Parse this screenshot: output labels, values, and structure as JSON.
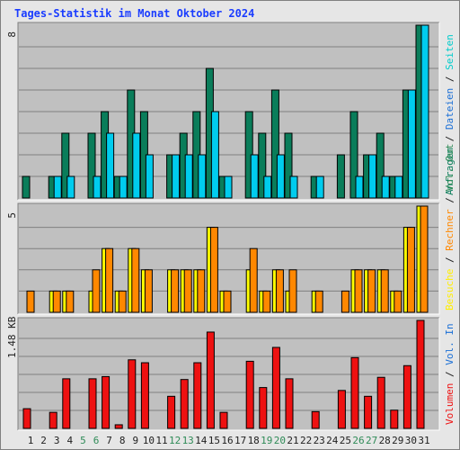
{
  "page": {
    "title": "Tages-Statistik im Monat Oktober 2024"
  },
  "colors": {
    "title": "#1a3cff",
    "panel_bg": "#c0c0c0",
    "grid": "#808080",
    "anfragen": "#0a7d5a",
    "dateien": "#00ccee",
    "seiten": "#00cccc",
    "besuche": "#ffff00",
    "rechner": "#ff8800",
    "volumen": "#ee1111",
    "axis_label": "#202020",
    "weekend_day": "#2e8b57"
  },
  "x_axis": {
    "days": [
      1,
      2,
      3,
      4,
      5,
      6,
      7,
      8,
      9,
      10,
      11,
      12,
      13,
      14,
      15,
      16,
      17,
      18,
      19,
      20,
      21,
      22,
      23,
      24,
      25,
      26,
      27,
      28,
      29,
      30,
      31
    ],
    "weekend_days": [
      5,
      6,
      12,
      13,
      19,
      20,
      26,
      27
    ]
  },
  "chart_data": [
    {
      "type": "bar",
      "title": "",
      "ylabel": "8",
      "ylim": [
        0,
        8
      ],
      "legend": [
        {
          "text": "Anfragen",
          "color": "#0a7d5a"
        },
        {
          "text": "Dateien",
          "color": "#1a6fd6"
        },
        {
          "text": "Seiten",
          "color": "#00cccc"
        }
      ],
      "legend_separators": [
        "/",
        "/"
      ],
      "series": [
        {
          "name": "Anfragen",
          "values": [
            1,
            0,
            1,
            3,
            0,
            3,
            4,
            1,
            5,
            4,
            0,
            2,
            3,
            4,
            6,
            1,
            0,
            4,
            3,
            5,
            3,
            0,
            1,
            0,
            2,
            4,
            2,
            3,
            1,
            5,
            8
          ]
        },
        {
          "name": "Dateien",
          "values": [
            0,
            0,
            1,
            1,
            0,
            1,
            3,
            1,
            3,
            2,
            0,
            2,
            2,
            2,
            4,
            1,
            0,
            2,
            1,
            2,
            1,
            0,
            1,
            0,
            0,
            1,
            2,
            1,
            1,
            5,
            8
          ]
        },
        {
          "name": "Seiten",
          "values": [
            0,
            0,
            1,
            1,
            0,
            1,
            3,
            1,
            3,
            2,
            0,
            2,
            2,
            2,
            4,
            1,
            0,
            2,
            1,
            2,
            1,
            0,
            1,
            0,
            0,
            1,
            2,
            1,
            1,
            5,
            8
          ]
        }
      ]
    },
    {
      "type": "bar",
      "title": "",
      "ylabel": "5",
      "ylim": [
        0,
        5
      ],
      "legend": [
        {
          "text": "Besuche",
          "color": "#ffee00"
        },
        {
          "text": "Rechner",
          "color": "#ff8800"
        },
        {
          "text": "Vol. Out",
          "color": "#2e8b57"
        }
      ],
      "legend_separators": [
        "/",
        "/"
      ],
      "series": [
        {
          "name": "Besuche",
          "values": [
            0,
            0,
            1,
            1,
            0,
            1,
            3,
            1,
            3,
            2,
            0,
            2,
            2,
            2,
            4,
            1,
            0,
            2,
            1,
            2,
            1,
            0,
            1,
            0,
            0,
            2,
            2,
            2,
            1,
            4,
            5
          ]
        },
        {
          "name": "Rechner",
          "values": [
            1,
            0,
            1,
            1,
            0,
            2,
            3,
            1,
            3,
            2,
            0,
            2,
            2,
            2,
            4,
            1,
            0,
            3,
            1,
            2,
            2,
            0,
            1,
            0,
            1,
            2,
            2,
            2,
            1,
            4,
            5
          ]
        }
      ]
    },
    {
      "type": "bar",
      "title": "",
      "ylabel": "1.48 KB",
      "ylim": [
        0,
        1.48
      ],
      "legend": [
        {
          "text": "Volumen",
          "color": "#ee1111"
        },
        {
          "text": "Vol. In",
          "color": "#1a6fd6"
        }
      ],
      "legend_separators": [
        "/"
      ],
      "series": [
        {
          "name": "Volumen",
          "values": [
            0.27,
            0,
            0.22,
            0.68,
            0,
            0.68,
            0.71,
            0.05,
            0.94,
            0.9,
            0,
            0.44,
            0.67,
            0.9,
            1.32,
            0.22,
            0,
            0.92,
            0.56,
            1.11,
            0.68,
            0,
            0.23,
            0,
            0.52,
            0.97,
            0.44,
            0.7,
            0.25,
            0.86,
            1.48
          ]
        }
      ]
    }
  ]
}
